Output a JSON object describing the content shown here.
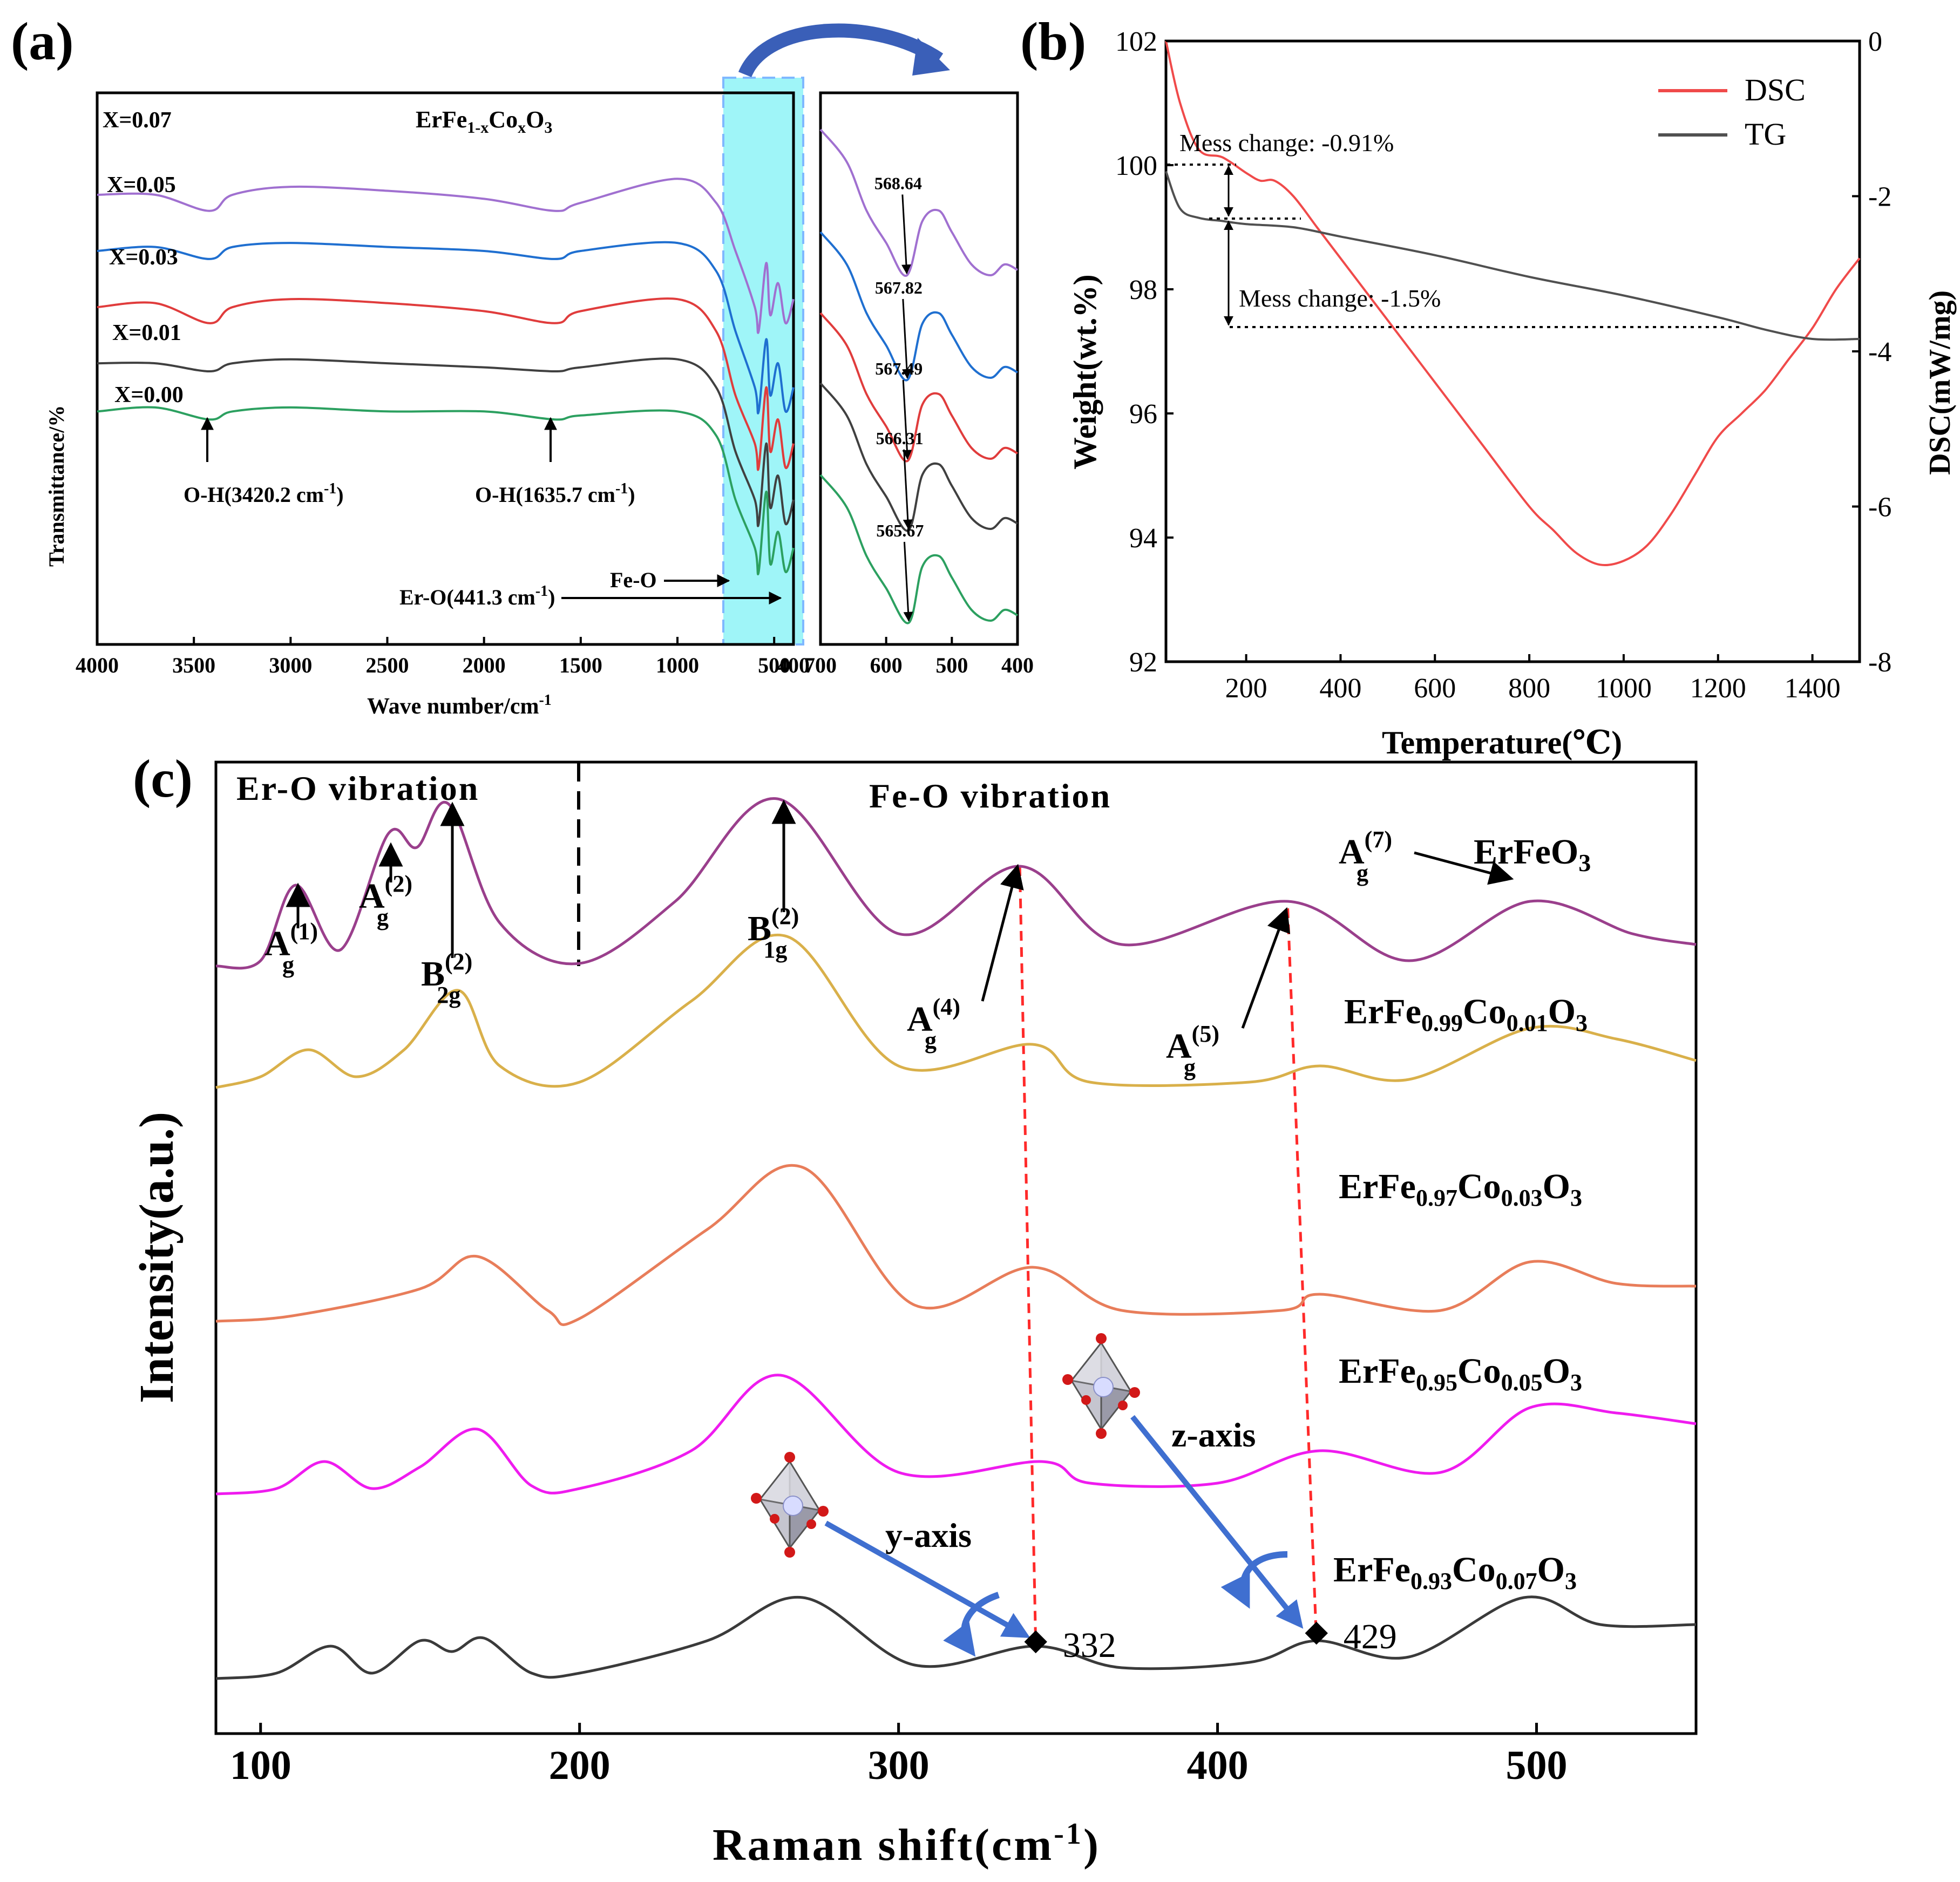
{
  "colors": {
    "violet": "#a070d0",
    "blue": "#1f6fd0",
    "red": "#e03c3c",
    "black": "#404040",
    "green": "#2ca060",
    "cyan_band": "#9ff5f8",
    "dsc": "#f04a4a",
    "tg": "#505050",
    "raman_purple": "#9a3f8c",
    "raman_yellow": "#d9b04a",
    "raman_orange": "#e87d5a",
    "raman_magenta": "#ef1bef",
    "raman_black": "#3a3a3a",
    "dashed_red": "#ff2a2a",
    "arrow_blue": "#3f6fd0"
  },
  "panel_a": {
    "label": "(a)",
    "chart_data": {
      "type": "line",
      "xlabel": "Wave number/cm⁻¹",
      "ylabel": "Transmittance/%",
      "title": "ErFe1-xCoxO3",
      "xlim": [
        4000,
        400
      ],
      "xticks": [
        4000,
        3500,
        3000,
        2500,
        2000,
        1500,
        1000,
        500,
        400
      ],
      "series": [
        {
          "name": "X=0.07",
          "x": [
            4000,
            3700,
            3420,
            3300,
            3000,
            2500,
            2000,
            1635,
            1500,
            1000,
            800,
            700,
            600,
            580,
            541,
            520,
            480,
            441,
            400
          ],
          "y": [
            84,
            84,
            80,
            84,
            86,
            85,
            83,
            80,
            82,
            88,
            82,
            70,
            56,
            50,
            67,
            54,
            62,
            52,
            58
          ]
        },
        {
          "name": "X=0.05",
          "x": [
            4000,
            3700,
            3420,
            3300,
            3000,
            2500,
            2000,
            1635,
            1500,
            1000,
            800,
            700,
            600,
            580,
            541,
            520,
            480,
            441,
            400
          ],
          "y": [
            70,
            71,
            68,
            71,
            72,
            71,
            70,
            68,
            70,
            72,
            65,
            50,
            36,
            30,
            48,
            34,
            42,
            30,
            36
          ]
        },
        {
          "name": "X=0.03",
          "x": [
            4000,
            3700,
            3420,
            3300,
            3000,
            2500,
            2000,
            1635,
            1500,
            1000,
            800,
            700,
            600,
            580,
            541,
            520,
            480,
            441,
            400
          ],
          "y": [
            56,
            57,
            52,
            56,
            58,
            57,
            55,
            52,
            55,
            58,
            50,
            34,
            22,
            16,
            36,
            20,
            28,
            16,
            22
          ]
        },
        {
          "name": "X=0.01",
          "x": [
            4000,
            3700,
            3420,
            3300,
            3000,
            2500,
            2000,
            1635,
            1500,
            1000,
            800,
            700,
            600,
            580,
            541,
            520,
            480,
            441,
            400
          ],
          "y": [
            42,
            42,
            40,
            42,
            43,
            42,
            41,
            40,
            41,
            43,
            36,
            20,
            8,
            2,
            22,
            6,
            14,
            2,
            8
          ]
        },
        {
          "name": "X=0.00",
          "x": [
            4000,
            3700,
            3420,
            3300,
            3000,
            2500,
            2000,
            1635,
            1500,
            1000,
            800,
            700,
            600,
            580,
            541,
            520,
            480,
            441,
            400
          ],
          "y": [
            30,
            31,
            28,
            30,
            31,
            30,
            30,
            28,
            29,
            30,
            24,
            8,
            -4,
            -10,
            10,
            -8,
            0,
            -10,
            -4
          ]
        }
      ],
      "annotations": [
        "O-H(3420.2 cm⁻¹)",
        "O-H(1635.7 cm⁻¹)",
        "Er-O(441.3 cm⁻¹)",
        "Fe-O"
      ]
    },
    "inset": {
      "xlim": [
        700,
        400
      ],
      "xticks": [
        700,
        600,
        500,
        400
      ],
      "peaks": [
        "568.64",
        "567.82",
        "567.49",
        "566.31",
        "565.67"
      ]
    }
  },
  "panel_b": {
    "label": "(b)",
    "chart_data": {
      "type": "line",
      "xlabel": "Temperature(℃)",
      "ylabel": "Weight(wt.%)",
      "y2label": "DSC(mW/mg)",
      "xlim": [
        30,
        1500
      ],
      "ylim": [
        92,
        102
      ],
      "y2lim": [
        -8,
        0
      ],
      "xticks": [
        200,
        400,
        600,
        800,
        1000,
        1200,
        1400
      ],
      "yticks": [
        92,
        94,
        96,
        98,
        100,
        102
      ],
      "y2ticks": [
        -8,
        -6,
        -4,
        -2,
        0
      ],
      "legend": "top-right",
      "series": [
        {
          "name": "DSC",
          "axis": "right",
          "x": [
            30,
            60,
            100,
            150,
            200,
            230,
            260,
            300,
            350,
            400,
            500,
            600,
            700,
            800,
            850,
            900,
            950,
            1000,
            1050,
            1100,
            1150,
            1200,
            1250,
            1300,
            1350,
            1400,
            1450,
            1500
          ],
          "y": [
            0,
            -0.8,
            -1.4,
            -1.5,
            -1.7,
            -1.8,
            -1.8,
            -2.0,
            -2.4,
            -2.8,
            -3.6,
            -4.4,
            -5.2,
            -6.0,
            -6.3,
            -6.6,
            -6.75,
            -6.7,
            -6.5,
            -6.1,
            -5.6,
            -5.1,
            -4.8,
            -4.5,
            -4.1,
            -3.7,
            -3.2,
            -2.8
          ]
        },
        {
          "name": "TG",
          "axis": "left",
          "x": [
            30,
            60,
            100,
            150,
            200,
            300,
            400,
            600,
            800,
            1000,
            1200,
            1300,
            1400,
            1500
          ],
          "y": [
            99.9,
            99.3,
            99.15,
            99.1,
            99.05,
            99.0,
            98.85,
            98.55,
            98.2,
            97.9,
            97.55,
            97.35,
            97.2,
            97.2
          ]
        }
      ],
      "annotations": [
        "Mess change: -0.91%",
        "Mess change: -1.5%"
      ]
    }
  },
  "panel_c": {
    "label": "(c)",
    "chart_data": {
      "type": "line",
      "xlabel": "Raman shift(cm⁻¹)",
      "ylabel": "Intensity(a.u.)",
      "xlim": [
        86,
        550
      ],
      "xticks": [
        100,
        200,
        300,
        400,
        500
      ],
      "series": [
        {
          "name": "ErFeO3"
        },
        {
          "name": "ErFe0.99Co0.01O3"
        },
        {
          "name": "ErFe0.97Co0.03O3"
        },
        {
          "name": "ErFe0.95Co0.05O3"
        },
        {
          "name": "ErFe0.93Co0.07O3"
        }
      ],
      "region_labels": [
        "Er-O vibration",
        "Fe-O vibration"
      ],
      "modes": [
        {
          "base": "A",
          "sub": "g",
          "sup": "(1)",
          "x": 111
        },
        {
          "base": "A",
          "sub": "g",
          "sup": "(2)",
          "x": 140
        },
        {
          "base": "B",
          "sub": "2g",
          "sup": "(2)",
          "x": 159
        },
        {
          "base": "B",
          "sub": "1g",
          "sup": "(2)",
          "x": 262
        },
        {
          "base": "A",
          "sub": "g",
          "sup": "(4)",
          "x": 338
        },
        {
          "base": "A",
          "sub": "g",
          "sup": "(5)",
          "x": 422
        },
        {
          "base": "A",
          "sub": "g",
          "sup": "(7)",
          "x": 498
        }
      ],
      "markers": [
        {
          "label": "332",
          "x": 343
        },
        {
          "label": "429",
          "x": 431
        }
      ],
      "axis_labels": [
        "y-axis",
        "z-axis"
      ]
    }
  }
}
